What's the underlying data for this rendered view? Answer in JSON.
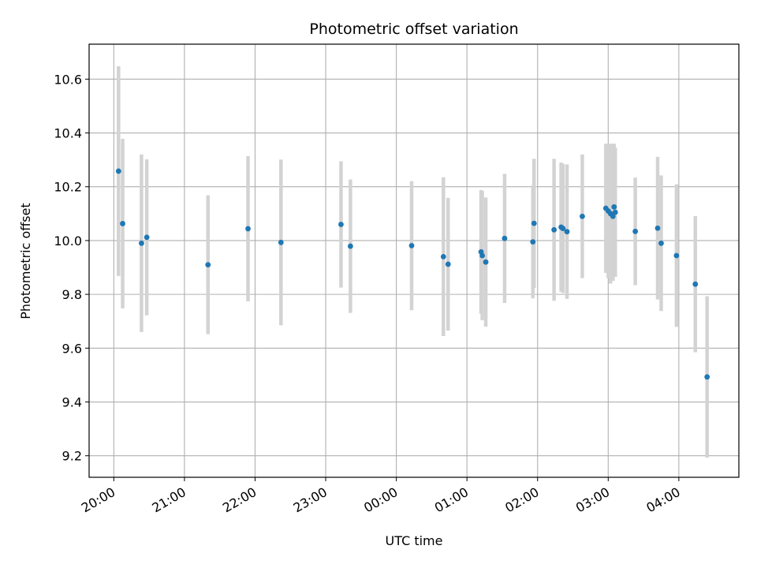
{
  "chart_data": {
    "type": "scatter",
    "title": "Photometric offset variation",
    "xlabel": "UTC time",
    "ylabel": "Photometric offset",
    "x_unit": "UTC date-time",
    "xlim": [
      "2024-01-01T19:39:00",
      "2024-01-02T04:51:00"
    ],
    "ylim": [
      9.12,
      10.73
    ],
    "x_ticks": [
      {
        "value": "2024-01-01T20:00:00",
        "label": "20:00"
      },
      {
        "value": "2024-01-01T21:00:00",
        "label": "21:00"
      },
      {
        "value": "2024-01-01T22:00:00",
        "label": "22:00"
      },
      {
        "value": "2024-01-01T23:00:00",
        "label": "23:00"
      },
      {
        "value": "2024-01-02T00:00:00",
        "label": "00:00"
      },
      {
        "value": "2024-01-02T01:00:00",
        "label": "01:00"
      },
      {
        "value": "2024-01-02T02:00:00",
        "label": "02:00"
      },
      {
        "value": "2024-01-02T03:00:00",
        "label": "03:00"
      },
      {
        "value": "2024-01-02T04:00:00",
        "label": "04:00"
      }
    ],
    "y_ticks": [
      9.2,
      9.4,
      9.6,
      9.8,
      10.0,
      10.2,
      10.4,
      10.6
    ],
    "y_tick_labels": [
      "9.2",
      "9.4",
      "9.6",
      "9.8",
      "10.0",
      "10.2",
      "10.4",
      "10.6"
    ],
    "grid": true,
    "marker_color": "#1f77b4",
    "errorbar_color": "#d3d3d3",
    "points": [
      {
        "x": "2024-01-01T20:04:00",
        "y": 10.258,
        "yerr": 0.39
      },
      {
        "x": "2024-01-01T20:07:30",
        "y": 10.063,
        "yerr": 0.315
      },
      {
        "x": "2024-01-01T20:23:30",
        "y": 9.99,
        "yerr": 0.33
      },
      {
        "x": "2024-01-01T20:28:00",
        "y": 10.012,
        "yerr": 0.29
      },
      {
        "x": "2024-01-01T21:20:00",
        "y": 9.91,
        "yerr": 0.258
      },
      {
        "x": "2024-01-01T21:54:00",
        "y": 10.044,
        "yerr": 0.27
      },
      {
        "x": "2024-01-01T22:22:00",
        "y": 9.993,
        "yerr": 0.308
      },
      {
        "x": "2024-01-01T23:13:00",
        "y": 10.06,
        "yerr": 0.235
      },
      {
        "x": "2024-01-01T23:21:00",
        "y": 9.979,
        "yerr": 0.248
      },
      {
        "x": "2024-01-02T00:13:00",
        "y": 9.981,
        "yerr": 0.24
      },
      {
        "x": "2024-01-02T00:40:00",
        "y": 9.94,
        "yerr": 0.295
      },
      {
        "x": "2024-01-02T00:44:00",
        "y": 9.912,
        "yerr": 0.247
      },
      {
        "x": "2024-01-02T01:12:00",
        "y": 9.958,
        "yerr": 0.23
      },
      {
        "x": "2024-01-02T01:13:00",
        "y": 9.944,
        "yerr": 0.24
      },
      {
        "x": "2024-01-02T01:16:00",
        "y": 9.92,
        "yerr": 0.24
      },
      {
        "x": "2024-01-02T01:32:00",
        "y": 10.008,
        "yerr": 0.24
      },
      {
        "x": "2024-01-02T01:56:00",
        "y": 9.995,
        "yerr": 0.21
      },
      {
        "x": "2024-01-02T01:57:00",
        "y": 10.064,
        "yerr": 0.24
      },
      {
        "x": "2024-01-02T02:14:00",
        "y": 10.04,
        "yerr": 0.264
      },
      {
        "x": "2024-01-02T02:20:00",
        "y": 10.05,
        "yerr": 0.24
      },
      {
        "x": "2024-01-02T02:21:30",
        "y": 10.045,
        "yerr": 0.24
      },
      {
        "x": "2024-01-02T02:25:00",
        "y": 10.033,
        "yerr": 0.25
      },
      {
        "x": "2024-01-02T02:38:00",
        "y": 10.09,
        "yerr": 0.23
      },
      {
        "x": "2024-01-02T02:58:00",
        "y": 10.12,
        "yerr": 0.24
      },
      {
        "x": "2024-01-02T03:00:00",
        "y": 10.11,
        "yerr": 0.25
      },
      {
        "x": "2024-01-02T03:02:00",
        "y": 10.1,
        "yerr": 0.26
      },
      {
        "x": "2024-01-02T03:04:00",
        "y": 10.09,
        "yerr": 0.24
      },
      {
        "x": "2024-01-02T03:05:00",
        "y": 10.125,
        "yerr": 0.235
      },
      {
        "x": "2024-01-02T03:06:00",
        "y": 10.105,
        "yerr": 0.24
      },
      {
        "x": "2024-01-02T03:23:00",
        "y": 10.034,
        "yerr": 0.2
      },
      {
        "x": "2024-01-02T03:42:00",
        "y": 10.046,
        "yerr": 0.265
      },
      {
        "x": "2024-01-02T03:45:00",
        "y": 9.99,
        "yerr": 0.252
      },
      {
        "x": "2024-01-02T03:58:00",
        "y": 9.944,
        "yerr": 0.265
      },
      {
        "x": "2024-01-02T04:14:00",
        "y": 9.838,
        "yerr": 0.253
      },
      {
        "x": "2024-01-02T04:24:00",
        "y": 9.493,
        "yerr": 0.3
      }
    ]
  }
}
